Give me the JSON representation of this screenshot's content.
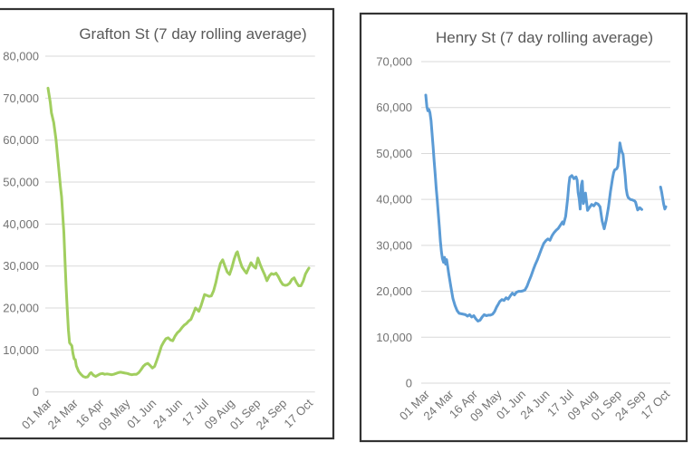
{
  "page": {
    "background": "#ffffff"
  },
  "chart_data": [
    {
      "type": "line",
      "title": "Grafton St (7 day rolling average)",
      "line_color": "#a1ce5f",
      "line_width": 3,
      "ylim": [
        0,
        80000
      ],
      "ytick_step": 10000,
      "ytick_labels": [
        "0",
        "10,000",
        "20,000",
        "30,000",
        "40,000",
        "50,000",
        "60,000",
        "70,000",
        "80,000"
      ],
      "xtick_labels": [
        "01 Mar",
        "24 Mar",
        "16 Apr",
        "09 May",
        "01 Jun",
        "24 Jun",
        "17 Jul",
        "09 Aug",
        "01 Sep",
        "24 Sep",
        "17 Oct"
      ],
      "x_range": [
        "01 Mar",
        "17 Oct"
      ],
      "grid": true,
      "legend": "none",
      "segments": [
        [
          [
            "01 Mar",
            72400
          ],
          [
            "03 Mar",
            69000
          ],
          [
            "04 Mar",
            66500
          ],
          [
            "06 Mar",
            64200
          ],
          [
            "08 Mar",
            60200
          ],
          [
            "10 Mar",
            54500
          ],
          [
            "12 Mar",
            48800
          ],
          [
            "13 Mar",
            46500
          ],
          [
            "14 Mar",
            42000
          ],
          [
            "15 Mar",
            38000
          ],
          [
            "16 Mar",
            31000
          ],
          [
            "17 Mar",
            25000
          ],
          [
            "18 Mar",
            19500
          ],
          [
            "19 Mar",
            14800
          ],
          [
            "20 Mar",
            11700
          ],
          [
            "22 Mar",
            11000
          ],
          [
            "23 Mar",
            9200
          ],
          [
            "24 Mar",
            7900
          ],
          [
            "25 Mar",
            7700
          ],
          [
            "26 Mar",
            6200
          ],
          [
            "28 Mar",
            4900
          ],
          [
            "30 Mar",
            4200
          ],
          [
            "01 Apr",
            3700
          ],
          [
            "03 Apr",
            3500
          ],
          [
            "05 Apr",
            3600
          ],
          [
            "07 Apr",
            4400
          ],
          [
            "08 Apr",
            4600
          ],
          [
            "10 Apr",
            4000
          ],
          [
            "12 Apr",
            3700
          ],
          [
            "14 Apr",
            4000
          ],
          [
            "16 Apr",
            4300
          ],
          [
            "18 Apr",
            4400
          ],
          [
            "20 Apr",
            4200
          ],
          [
            "22 Apr",
            4300
          ],
          [
            "24 Apr",
            4200
          ],
          [
            "26 Apr",
            4100
          ],
          [
            "28 Apr",
            4200
          ],
          [
            "30 Apr",
            4400
          ],
          [
            "02 May",
            4600
          ],
          [
            "04 May",
            4700
          ],
          [
            "06 May",
            4600
          ],
          [
            "08 May",
            4500
          ],
          [
            "10 May",
            4400
          ],
          [
            "12 May",
            4200
          ],
          [
            "14 May",
            4100
          ],
          [
            "16 May",
            4200
          ],
          [
            "18 May",
            4200
          ],
          [
            "20 May",
            4600
          ],
          [
            "22 May",
            5300
          ],
          [
            "24 May",
            6100
          ],
          [
            "26 May",
            6600
          ],
          [
            "28 May",
            6800
          ],
          [
            "30 May",
            6300
          ],
          [
            "01 Jun",
            5700
          ],
          [
            "03 Jun",
            6100
          ],
          [
            "05 Jun",
            7600
          ],
          [
            "07 Jun",
            9200
          ],
          [
            "09 Jun",
            10900
          ],
          [
            "11 Jun",
            11900
          ],
          [
            "13 Jun",
            12700
          ],
          [
            "15 Jun",
            12900
          ],
          [
            "17 Jun",
            12400
          ],
          [
            "19 Jun",
            12200
          ],
          [
            "21 Jun",
            13300
          ],
          [
            "23 Jun",
            14100
          ],
          [
            "25 Jun",
            14600
          ],
          [
            "27 Jun",
            15300
          ],
          [
            "29 Jun",
            15900
          ],
          [
            "01 Jul",
            16300
          ],
          [
            "03 Jul",
            16900
          ],
          [
            "05 Jul",
            17300
          ],
          [
            "07 Jul",
            18600
          ],
          [
            "09 Jul",
            20000
          ],
          [
            "11 Jul",
            19500
          ],
          [
            "12 Jul",
            19200
          ],
          [
            "14 Jul",
            20600
          ],
          [
            "16 Jul",
            22400
          ],
          [
            "17 Jul",
            23200
          ],
          [
            "19 Jul",
            23000
          ],
          [
            "21 Jul",
            22800
          ],
          [
            "23 Jul",
            22900
          ],
          [
            "25 Jul",
            24100
          ],
          [
            "27 Jul",
            26100
          ],
          [
            "29 Jul",
            28600
          ],
          [
            "31 Jul",
            30600
          ],
          [
            "02 Aug",
            31500
          ],
          [
            "04 Aug",
            30000
          ],
          [
            "06 Aug",
            28600
          ],
          [
            "08 Aug",
            28000
          ],
          [
            "10 Aug",
            29600
          ],
          [
            "12 Aug",
            31600
          ],
          [
            "14 Aug",
            33100
          ],
          [
            "15 Aug",
            33400
          ],
          [
            "17 Aug",
            31400
          ],
          [
            "19 Aug",
            29800
          ],
          [
            "21 Aug",
            29000
          ],
          [
            "23 Aug",
            28300
          ],
          [
            "25 Aug",
            29600
          ],
          [
            "27 Aug",
            30800
          ],
          [
            "29 Aug",
            30000
          ],
          [
            "31 Aug",
            29500
          ],
          [
            "02 Sep",
            31900
          ],
          [
            "04 Sep",
            30400
          ],
          [
            "06 Sep",
            29100
          ],
          [
            "08 Sep",
            27900
          ],
          [
            "10 Sep",
            26500
          ],
          [
            "12 Sep",
            27600
          ],
          [
            "14 Sep",
            28200
          ],
          [
            "16 Sep",
            28000
          ],
          [
            "18 Sep",
            28300
          ],
          [
            "20 Sep",
            27500
          ],
          [
            "22 Sep",
            26400
          ],
          [
            "24 Sep",
            25600
          ],
          [
            "26 Sep",
            25400
          ],
          [
            "28 Sep",
            25500
          ],
          [
            "30 Sep",
            25900
          ],
          [
            "02 Oct",
            26800
          ],
          [
            "04 Oct",
            27200
          ],
          [
            "06 Oct",
            26100
          ],
          [
            "08 Oct",
            25300
          ],
          [
            "10 Oct",
            25300
          ],
          [
            "12 Oct",
            26400
          ],
          [
            "14 Oct",
            28100
          ],
          [
            "16 Oct",
            29100
          ],
          [
            "17 Oct",
            29500
          ]
        ]
      ]
    },
    {
      "type": "line",
      "title": "Henry St (7 day rolling average)",
      "line_color": "#5b9bd5",
      "line_width": 3,
      "ylim": [
        0,
        70000
      ],
      "ytick_step": 10000,
      "ytick_labels": [
        "0",
        "10,000",
        "20,000",
        "30,000",
        "40,000",
        "50,000",
        "60,000",
        "70,000"
      ],
      "xtick_labels": [
        "01 Mar",
        "24 Mar",
        "16 Apr",
        "09 May",
        "01 Jun",
        "24 Jun",
        "17 Jul",
        "09 Aug",
        "01 Sep",
        "24 Sep",
        "17 Oct"
      ],
      "x_range": [
        "01 Mar",
        "17 Oct"
      ],
      "grid": true,
      "legend": "none",
      "data_gap": [
        "25 Sep",
        "11 Oct"
      ],
      "segments": [
        [
          [
            "01 Mar",
            62700
          ],
          [
            "02 Mar",
            60200
          ],
          [
            "03 Mar",
            59300
          ],
          [
            "04 Mar",
            59600
          ],
          [
            "05 Mar",
            58900
          ],
          [
            "06 Mar",
            57200
          ],
          [
            "07 Mar",
            54500
          ],
          [
            "08 Mar",
            51500
          ],
          [
            "09 Mar",
            48500
          ],
          [
            "10 Mar",
            45500
          ],
          [
            "11 Mar",
            42500
          ],
          [
            "12 Mar",
            39800
          ],
          [
            "13 Mar",
            37000
          ],
          [
            "14 Mar",
            34000
          ],
          [
            "15 Mar",
            31000
          ],
          [
            "16 Mar",
            28600
          ],
          [
            "17 Mar",
            27100
          ],
          [
            "18 Mar",
            26300
          ],
          [
            "19 Mar",
            27400
          ],
          [
            "20 Mar",
            25900
          ],
          [
            "21 Mar",
            26900
          ],
          [
            "22 Mar",
            25400
          ],
          [
            "23 Mar",
            23900
          ],
          [
            "25 Mar",
            21000
          ],
          [
            "27 Mar",
            18400
          ],
          [
            "29 Mar",
            16900
          ],
          [
            "31 Mar",
            15800
          ],
          [
            "02 Apr",
            15200
          ],
          [
            "04 Apr",
            15100
          ],
          [
            "06 Apr",
            15000
          ],
          [
            "08 Apr",
            14900
          ],
          [
            "10 Apr",
            14600
          ],
          [
            "12 Apr",
            14900
          ],
          [
            "14 Apr",
            14400
          ],
          [
            "16 Apr",
            14700
          ],
          [
            "18 Apr",
            14000
          ],
          [
            "20 Apr",
            13500
          ],
          [
            "22 Apr",
            13700
          ],
          [
            "24 Apr",
            14400
          ],
          [
            "26 Apr",
            14900
          ],
          [
            "28 Apr",
            14700
          ],
          [
            "30 Apr",
            14800
          ],
          [
            "02 May",
            14800
          ],
          [
            "04 May",
            15000
          ],
          [
            "06 May",
            15600
          ],
          [
            "08 May",
            16600
          ],
          [
            "09 May",
            17000
          ],
          [
            "11 May",
            17800
          ],
          [
            "13 May",
            18200
          ],
          [
            "15 May",
            18000
          ],
          [
            "17 May",
            18600
          ],
          [
            "19 May",
            18300
          ],
          [
            "21 May",
            19000
          ],
          [
            "23 May",
            19600
          ],
          [
            "25 May",
            19200
          ],
          [
            "27 May",
            19800
          ],
          [
            "29 May",
            20000
          ],
          [
            "31 May",
            20000
          ],
          [
            "02 Jun",
            20100
          ],
          [
            "04 Jun",
            20300
          ],
          [
            "06 Jun",
            21100
          ],
          [
            "08 Jun",
            22300
          ],
          [
            "10 Jun",
            23400
          ],
          [
            "12 Jun",
            24700
          ],
          [
            "14 Jun",
            25900
          ],
          [
            "16 Jun",
            26900
          ],
          [
            "18 Jun",
            28100
          ],
          [
            "20 Jun",
            29300
          ],
          [
            "22 Jun",
            30400
          ],
          [
            "24 Jun",
            31000
          ],
          [
            "26 Jun",
            31400
          ],
          [
            "28 Jun",
            31100
          ],
          [
            "30 Jun",
            32100
          ],
          [
            "02 Jul",
            32800
          ],
          [
            "04 Jul",
            33300
          ],
          [
            "06 Jul",
            33700
          ],
          [
            "08 Jul",
            34400
          ],
          [
            "10 Jul",
            35100
          ],
          [
            "11 Jul",
            34600
          ],
          [
            "13 Jul",
            36300
          ],
          [
            "14 Jul",
            38200
          ],
          [
            "15 Jul",
            40300
          ],
          [
            "16 Jul",
            43100
          ],
          [
            "17 Jul",
            44800
          ],
          [
            "19 Jul",
            45200
          ],
          [
            "21 Jul",
            44500
          ],
          [
            "23 Jul",
            44900
          ],
          [
            "24 Jul",
            44200
          ],
          [
            "25 Jul",
            41500
          ],
          [
            "26 Jul",
            40100
          ],
          [
            "27 Jul",
            37900
          ],
          [
            "28 Jul",
            43100
          ],
          [
            "29 Jul",
            44000
          ],
          [
            "30 Jul",
            39100
          ],
          [
            "31 Jul",
            39900
          ],
          [
            "01 Aug",
            41400
          ],
          [
            "03 Aug",
            37600
          ],
          [
            "05 Aug",
            38300
          ],
          [
            "07 Aug",
            38900
          ],
          [
            "09 Aug",
            38600
          ],
          [
            "11 Aug",
            39200
          ],
          [
            "13 Aug",
            39000
          ],
          [
            "15 Aug",
            38400
          ],
          [
            "17 Aug",
            35300
          ],
          [
            "19 Aug",
            33600
          ],
          [
            "21 Aug",
            35600
          ],
          [
            "23 Aug",
            38200
          ],
          [
            "25 Aug",
            41700
          ],
          [
            "27 Aug",
            44600
          ],
          [
            "28 Aug",
            45800
          ],
          [
            "29 Aug",
            46400
          ],
          [
            "31 Aug",
            46700
          ],
          [
            "01 Sep",
            47200
          ],
          [
            "02 Sep",
            49600
          ],
          [
            "03 Sep",
            52300
          ],
          [
            "04 Sep",
            51100
          ],
          [
            "05 Sep",
            50300
          ],
          [
            "06 Sep",
            49800
          ],
          [
            "07 Sep",
            47400
          ],
          [
            "08 Sep",
            45200
          ],
          [
            "09 Sep",
            42400
          ],
          [
            "10 Sep",
            41000
          ],
          [
            "11 Sep",
            40400
          ],
          [
            "13 Sep",
            40000
          ],
          [
            "15 Sep",
            39900
          ],
          [
            "17 Sep",
            39700
          ],
          [
            "18 Sep",
            39400
          ],
          [
            "19 Sep",
            38600
          ],
          [
            "20 Sep",
            37700
          ],
          [
            "21 Sep",
            37900
          ],
          [
            "22 Sep",
            38200
          ],
          [
            "23 Sep",
            38000
          ],
          [
            "24 Sep",
            37800
          ]
        ],
        [
          [
            "12 Oct",
            42700
          ],
          [
            "13 Oct",
            41600
          ],
          [
            "14 Oct",
            40300
          ],
          [
            "15 Oct",
            38900
          ],
          [
            "16 Oct",
            37900
          ],
          [
            "17 Oct",
            38400
          ]
        ]
      ]
    }
  ]
}
